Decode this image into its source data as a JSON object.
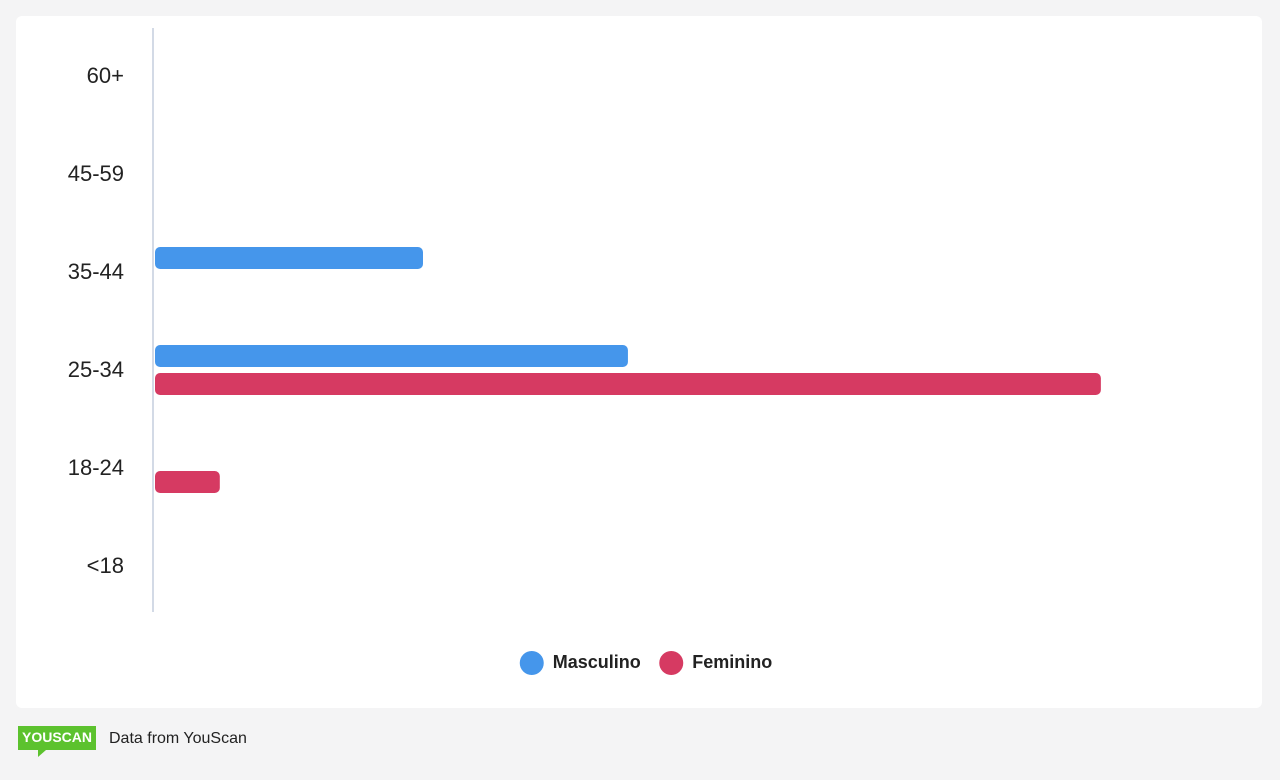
{
  "chart_data": {
    "type": "hbar",
    "categories": [
      "60+",
      "45-59",
      "35-44",
      "25-34",
      "18-24",
      "<18"
    ],
    "series": [
      {
        "name": "Masculino",
        "color": "#4596eb",
        "values": [
          0,
          0,
          15.3,
          27,
          0,
          0
        ]
      },
      {
        "name": "Feminino",
        "color": "#d63a62",
        "values": [
          0,
          0,
          0,
          54,
          3.7,
          0
        ]
      }
    ],
    "xlim": [
      0,
      62
    ],
    "legend": "bottom"
  },
  "footer": {
    "logo": "YOUSCAN",
    "text": "Data from YouScan"
  }
}
